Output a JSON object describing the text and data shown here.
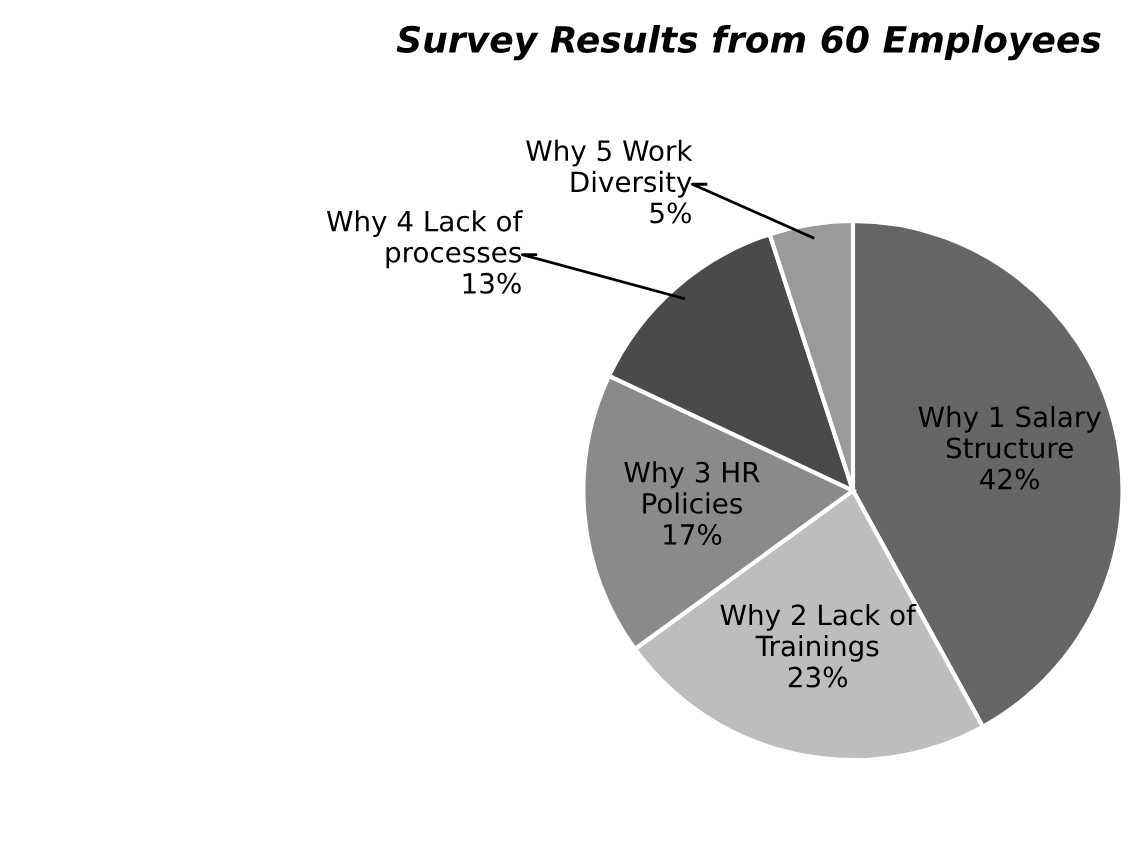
{
  "chart_data": {
    "type": "pie",
    "title": "Survey Results from 60 Employees",
    "categories": [
      "Why 1 Salary Structure",
      "Why 2 Lack of Trainings",
      "Why 3 HR Policies",
      "Why 4 Lack of processes",
      "Why 5 Work Diversity"
    ],
    "values": [
      42,
      23,
      17,
      13,
      5
    ],
    "colors": [
      "#666666",
      "#bdbdbd",
      "#8a8a8a",
      "#4a4a4a",
      "#9a9a9a"
    ],
    "value_labels": [
      "42%",
      "23%",
      "17%",
      "13%",
      "5%"
    ]
  }
}
